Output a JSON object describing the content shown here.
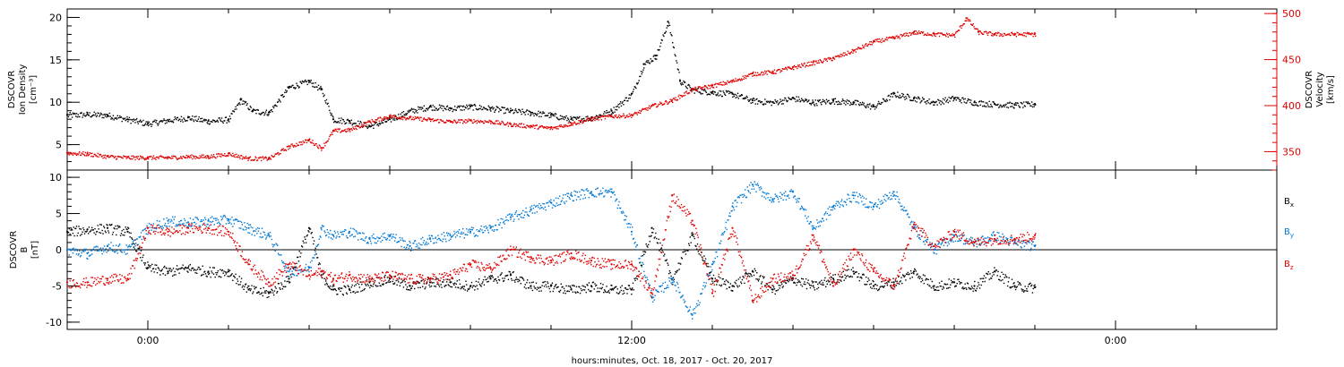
{
  "chart_data": [
    {
      "type": "scatter",
      "panel": "top",
      "left_axis": {
        "label_lines": [
          "DSCOVR",
          "Ion Density",
          "[cm⁻³]"
        ],
        "ylim": [
          2,
          21
        ],
        "ticks": [
          5,
          10,
          15,
          20
        ],
        "tick_labels": [
          "5",
          "10",
          "15",
          "20"
        ],
        "color": "#000000"
      },
      "right_axis": {
        "label_lines": [
          "DSCOVR",
          "Velocity",
          "[km/s]"
        ],
        "ylim": [
          330,
          505
        ],
        "ticks": [
          350,
          400,
          450,
          500
        ],
        "tick_labels": [
          "350",
          "400",
          "450",
          "500"
        ],
        "color": "#e00000"
      },
      "series": [
        {
          "axis": "left",
          "color": "#000000",
          "x": [
            -2.0,
            -1.5,
            -1.0,
            -0.5,
            0.0,
            0.5,
            1.0,
            1.5,
            2.0,
            2.3,
            2.6,
            3.0,
            3.5,
            4.0,
            4.3,
            4.6,
            5.0,
            5.5,
            6.0,
            6.5,
            7.0,
            7.5,
            8.0,
            8.5,
            9.0,
            9.5,
            10.0,
            10.5,
            11.0,
            11.5,
            12.0,
            12.3,
            12.6,
            12.9,
            13.2,
            13.5,
            14.0,
            14.5,
            15.0,
            15.5,
            16.0,
            16.5,
            17.0,
            17.5,
            18.0,
            18.5,
            19.0,
            19.5,
            20.0,
            20.5,
            21.0,
            21.5,
            22.0
          ],
          "y": [
            8.5,
            8.6,
            8.5,
            8.0,
            7.5,
            7.9,
            8.2,
            7.8,
            8.0,
            10.3,
            9.0,
            8.8,
            11.8,
            12.5,
            11.5,
            8.0,
            7.8,
            7.2,
            8.0,
            9.0,
            9.5,
            9.3,
            9.5,
            9.3,
            9.0,
            8.8,
            8.5,
            8.0,
            8.2,
            9.0,
            11.0,
            14.5,
            15.5,
            19.5,
            12.5,
            11.5,
            11.2,
            11.0,
            10.2,
            10.0,
            10.5,
            10.0,
            10.2,
            10.0,
            9.5,
            11.0,
            10.5,
            10.0,
            10.5,
            10.0,
            9.8,
            9.7,
            9.8
          ]
        },
        {
          "axis": "right",
          "color": "#e00000",
          "x": [
            -2.0,
            -1.5,
            -1.0,
            -0.5,
            0.0,
            0.5,
            1.0,
            1.5,
            2.0,
            2.5,
            3.0,
            3.5,
            4.0,
            4.3,
            4.6,
            5.0,
            5.5,
            6.0,
            6.5,
            7.0,
            7.5,
            8.0,
            8.5,
            9.0,
            9.5,
            10.0,
            10.5,
            11.0,
            11.5,
            12.0,
            12.5,
            13.0,
            13.5,
            14.0,
            14.5,
            15.0,
            15.5,
            16.0,
            16.5,
            17.0,
            17.5,
            18.0,
            18.5,
            19.0,
            19.5,
            20.0,
            20.3,
            20.6,
            21.0,
            21.5,
            22.0
          ],
          "y": [
            349,
            348,
            345,
            344,
            344,
            344,
            345,
            345,
            348,
            343,
            343,
            356,
            363,
            354,
            373,
            374,
            383,
            389,
            387,
            385,
            383,
            384,
            383,
            380,
            378,
            376,
            381,
            386,
            389,
            390,
            400,
            406,
            418,
            422,
            427,
            435,
            437,
            442,
            447,
            452,
            460,
            470,
            474,
            480,
            478,
            477,
            495,
            480,
            478,
            478,
            478
          ]
        }
      ]
    },
    {
      "type": "scatter",
      "panel": "bottom",
      "left_axis": {
        "label_lines": [
          "DSCOVR",
          "B",
          "[nT]"
        ],
        "ylim": [
          -11,
          11
        ],
        "ticks": [
          -10,
          -5,
          0,
          5,
          10
        ],
        "tick_labels": [
          "-10",
          "-5",
          "0",
          "5",
          "10"
        ],
        "color": "#000000"
      },
      "zero_line": 0,
      "series": [
        {
          "name": "Bx",
          "label": "B",
          "subscript": "x",
          "color": "#000000",
          "x": [
            -2.0,
            -1.5,
            -1.0,
            -0.5,
            0.0,
            0.5,
            1.0,
            1.5,
            2.0,
            2.5,
            3.0,
            3.5,
            4.0,
            4.3,
            4.6,
            5.0,
            5.5,
            6.0,
            6.5,
            7.0,
            7.5,
            8.0,
            8.5,
            9.0,
            9.5,
            10.0,
            10.5,
            11.0,
            11.5,
            12.0,
            12.5,
            13.0,
            13.5,
            14.0,
            14.5,
            15.0,
            15.5,
            16.0,
            16.5,
            17.0,
            17.5,
            18.0,
            18.5,
            19.0,
            19.5,
            20.0,
            20.5,
            21.0,
            21.5,
            22.0
          ],
          "y": [
            2.5,
            2.8,
            3.0,
            2.5,
            -2.5,
            -3.0,
            -2.5,
            -3.0,
            -3.0,
            -5.5,
            -6.0,
            -4.0,
            3.0,
            -3.5,
            -5.5,
            -5.5,
            -4.5,
            -4.0,
            -5.0,
            -4.5,
            -4.5,
            -5.0,
            -4.0,
            -3.5,
            -5.0,
            -5.0,
            -5.5,
            -5.0,
            -5.5,
            -5.5,
            3.0,
            -4.0,
            2.0,
            -4.0,
            -5.0,
            -3.0,
            -5.5,
            -4.0,
            -5.0,
            -4.0,
            -3.0,
            -5.0,
            -4.5,
            -3.0,
            -5.0,
            -4.5,
            -5.0,
            -3.0,
            -5.0,
            -5.2
          ]
        },
        {
          "name": "By",
          "label": "B",
          "subscript": "y",
          "color": "#0078d4",
          "x": [
            -2.0,
            -1.5,
            -1.0,
            -0.5,
            0.0,
            0.5,
            1.0,
            1.5,
            2.0,
            2.5,
            3.0,
            3.5,
            4.0,
            4.3,
            4.6,
            5.0,
            5.5,
            6.0,
            6.5,
            7.0,
            7.5,
            8.0,
            8.5,
            9.0,
            9.5,
            10.0,
            10.5,
            11.0,
            11.5,
            12.0,
            12.5,
            13.0,
            13.5,
            14.0,
            14.5,
            15.0,
            15.5,
            16.0,
            16.5,
            17.0,
            17.5,
            18.0,
            18.5,
            19.0,
            19.5,
            20.0,
            20.5,
            21.0,
            21.5,
            22.0
          ],
          "y": [
            0.0,
            -0.5,
            0.5,
            0.0,
            3.0,
            4.0,
            3.8,
            4.0,
            4.2,
            3.0,
            2.0,
            -3.0,
            -2.5,
            3.0,
            2.0,
            2.5,
            1.5,
            2.0,
            0.5,
            1.5,
            2.0,
            2.5,
            3.0,
            4.5,
            5.5,
            6.5,
            7.5,
            8.0,
            8.0,
            2.5,
            -6.5,
            -4.0,
            -9.0,
            -2.0,
            6.0,
            9.0,
            7.0,
            8.0,
            3.0,
            6.0,
            7.5,
            6.0,
            8.0,
            3.0,
            0.0,
            2.0,
            1.0,
            2.0,
            1.0,
            0.5
          ]
        },
        {
          "name": "Bz",
          "label": "B",
          "subscript": "z",
          "color": "#e00000",
          "x": [
            -2.0,
            -1.5,
            -1.0,
            -0.5,
            0.0,
            0.5,
            1.0,
            1.5,
            2.0,
            2.5,
            3.0,
            3.5,
            4.0,
            4.3,
            4.6,
            5.0,
            5.5,
            6.0,
            6.5,
            7.0,
            7.5,
            8.0,
            8.5,
            9.0,
            9.5,
            10.0,
            10.5,
            11.0,
            11.5,
            12.0,
            12.5,
            13.0,
            13.5,
            14.0,
            14.5,
            15.0,
            15.5,
            16.0,
            16.5,
            17.0,
            17.5,
            18.0,
            18.5,
            19.0,
            19.5,
            20.0,
            20.5,
            21.0,
            21.5,
            22.0
          ],
          "y": [
            -4.5,
            -4.5,
            -4.0,
            -4.0,
            3.0,
            2.5,
            3.0,
            3.0,
            2.5,
            -2.0,
            -4.5,
            -2.0,
            -3.5,
            -3.0,
            -4.0,
            -3.5,
            -4.0,
            -3.5,
            -4.0,
            -4.0,
            -3.5,
            -2.0,
            -2.5,
            0.0,
            -1.0,
            -1.5,
            -0.5,
            -1.5,
            -2.0,
            -2.0,
            -6.0,
            7.5,
            4.0,
            -6.0,
            3.0,
            -7.0,
            -4.0,
            -3.5,
            2.0,
            -5.0,
            0.0,
            -3.0,
            -5.0,
            3.5,
            0.5,
            2.5,
            1.0,
            1.5,
            1.5,
            2.0
          ]
        }
      ]
    }
  ],
  "x_axis": {
    "label": "hours:minutes, Oct. 18, 2017 - Oct. 20, 2017",
    "xlim": [
      -2.0,
      28.0
    ],
    "major_ticks": [
      0,
      12,
      24
    ],
    "major_tick_labels": [
      "0:00",
      "12:00",
      "0:00"
    ],
    "minor_step": 2
  }
}
